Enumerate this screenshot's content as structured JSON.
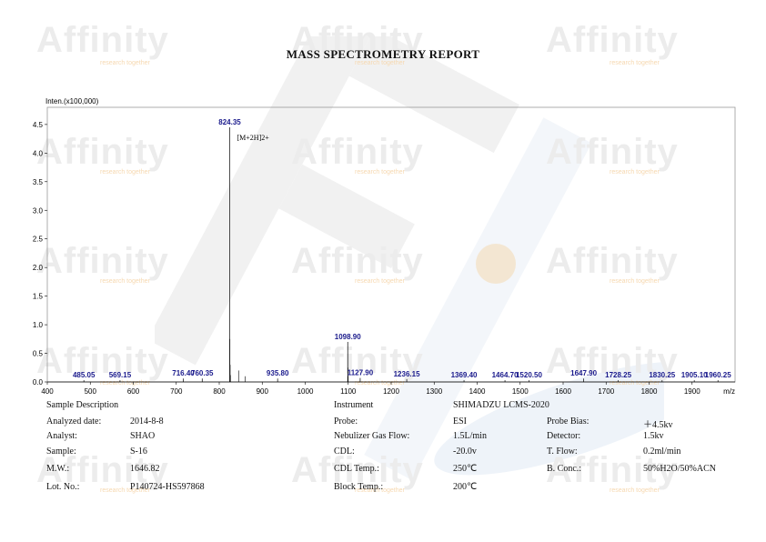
{
  "report_title": "MASS SPECTROMETRY REPORT",
  "watermark": {
    "brand": "Affinity",
    "tagline": "research together"
  },
  "chart_data": {
    "type": "line",
    "ylabel": "Inten.(x100,000)",
    "xlabel": "m/z",
    "xlim": [
      400,
      2000
    ],
    "ylim": [
      0,
      4.8
    ],
    "xticks": [
      400,
      500,
      600,
      700,
      800,
      900,
      1000,
      1100,
      1200,
      1300,
      1400,
      1500,
      1600,
      1700,
      1800,
      1900
    ],
    "yticks": [
      0.0,
      0.5,
      1.0,
      1.5,
      2.0,
      2.5,
      3.0,
      3.5,
      4.0,
      4.5
    ],
    "peaks": [
      {
        "mz": 485.05,
        "intensity": 0.03,
        "label": "485.05"
      },
      {
        "mz": 569.15,
        "intensity": 0.03,
        "label": "569.15"
      },
      {
        "mz": 716.4,
        "intensity": 0.06,
        "label": "716.40"
      },
      {
        "mz": 760.35,
        "intensity": 0.06,
        "label": "760.35"
      },
      {
        "mz": 824.35,
        "intensity": 4.45,
        "label": "824.35"
      },
      {
        "mz": 935.8,
        "intensity": 0.06,
        "label": "935.80"
      },
      {
        "mz": 1098.9,
        "intensity": 0.7,
        "label": "1098.90"
      },
      {
        "mz": 1127.9,
        "intensity": 0.07,
        "label": "1127.90"
      },
      {
        "mz": 1236.15,
        "intensity": 0.05,
        "label": "1236.15"
      },
      {
        "mz": 1369.4,
        "intensity": 0.03,
        "label": "1369.40"
      },
      {
        "mz": 1464.7,
        "intensity": 0.03,
        "label": "1464.70"
      },
      {
        "mz": 1520.5,
        "intensity": 0.03,
        "label": "1520.50"
      },
      {
        "mz": 1647.9,
        "intensity": 0.06,
        "label": "1647.90"
      },
      {
        "mz": 1728.25,
        "intensity": 0.03,
        "label": "1728.25"
      },
      {
        "mz": 1830.25,
        "intensity": 0.03,
        "label": "1830.25"
      },
      {
        "mz": 1905.1,
        "intensity": 0.03,
        "label": "1905.10"
      },
      {
        "mz": 1960.25,
        "intensity": 0.03,
        "label": "1960.25"
      }
    ],
    "minor_peaks": [
      {
        "mz": 824.85,
        "intensity": 0.75
      },
      {
        "mz": 825.35,
        "intensity": 0.3
      },
      {
        "mz": 826.0,
        "intensity": 0.12
      },
      {
        "mz": 1099.4,
        "intensity": 0.25
      },
      {
        "mz": 1099.9,
        "intensity": 0.1
      },
      {
        "mz": 845.0,
        "intensity": 0.2
      },
      {
        "mz": 860.0,
        "intensity": 0.1
      }
    ],
    "annotations": [
      {
        "mz": 824.35,
        "text": "[M+2H]2+"
      }
    ],
    "grid": false,
    "colors": {
      "trace": "#000000",
      "peak_label": "#1a1a8c",
      "axis": "#000000"
    }
  },
  "sample_section": {
    "heading": "Sample Description",
    "rows": [
      {
        "label": "Analyzed date:",
        "value": "2014-8-8"
      },
      {
        "label": "Analyst:",
        "value": "SHAO"
      },
      {
        "label": "Sample:",
        "value": "S-16"
      },
      {
        "label": "M.W.:",
        "value": "1646.82"
      },
      {
        "label": "Lot. No.:",
        "value": "P140724-HS597868"
      }
    ]
  },
  "instrument_section": {
    "heading": "Instrument",
    "heading_value": "SHIMADZU LCMS-2020",
    "rows": [
      {
        "label": "Probe:",
        "value": "ESI",
        "label2": "Probe Bias:",
        "value2": "＋4.5kv"
      },
      {
        "label": "Nebulizer Gas Flow:",
        "value": "1.5L/min",
        "label2": "Detector:",
        "value2": "1.5kv"
      },
      {
        "label": "CDL:",
        "value": "-20.0v",
        "label2": "T. Flow:",
        "value2": "0.2ml/min"
      },
      {
        "label": "CDL Temp.:",
        "value": "250℃",
        "label2": "B. Conc.:",
        "value2": "50%H2O/50%ACN"
      },
      {
        "label": "Block Temp.:",
        "value": "200℃",
        "label2": "",
        "value2": ""
      }
    ]
  }
}
